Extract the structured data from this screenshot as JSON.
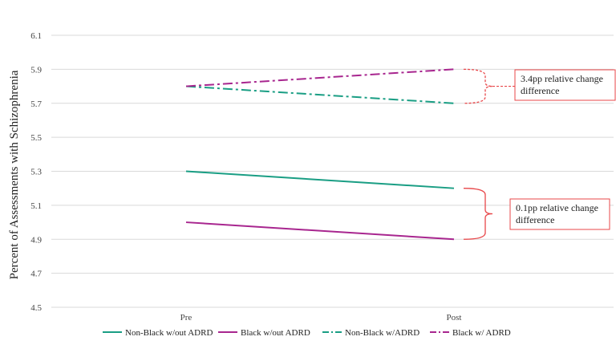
{
  "chart_data": {
    "type": "line",
    "title": "",
    "xlabel": "",
    "ylabel": "Percent of Assessments with Schizophrenia",
    "categories": [
      "Pre",
      "Post"
    ],
    "ylim": [
      4.5,
      6.1
    ],
    "yticks": [
      "6.1",
      "5.9",
      "5.7",
      "5.5",
      "5.3",
      "5.1",
      "4.9",
      "4.7",
      "4.5"
    ],
    "grid": true,
    "legend_position": "bottom",
    "series": [
      {
        "name": "Non-Black w/out ADRD",
        "values": [
          5.3,
          5.2
        ],
        "color": "#1a9e84",
        "style": "solid"
      },
      {
        "name": "Black w/out ADRD",
        "values": [
          5.0,
          4.9
        ],
        "color": "#a8268f",
        "style": "solid"
      },
      {
        "name": "Non-Black w/ADRD",
        "values": [
          5.8,
          5.7
        ],
        "color": "#1a9e84",
        "style": "dashdot"
      },
      {
        "name": "Black w/ ADRD",
        "values": [
          5.8,
          5.9
        ],
        "color": "#a8268f",
        "style": "dashdot"
      }
    ],
    "annotations": [
      {
        "line1": "3.4pp relative change",
        "line2": "difference",
        "between": [
          5.7,
          5.9
        ],
        "style": "dashed",
        "color": "#e8474a"
      },
      {
        "line1": "0.1pp relative change",
        "line2": "difference",
        "between": [
          4.9,
          5.2
        ],
        "style": "solid",
        "color": "#e8474a"
      }
    ]
  }
}
